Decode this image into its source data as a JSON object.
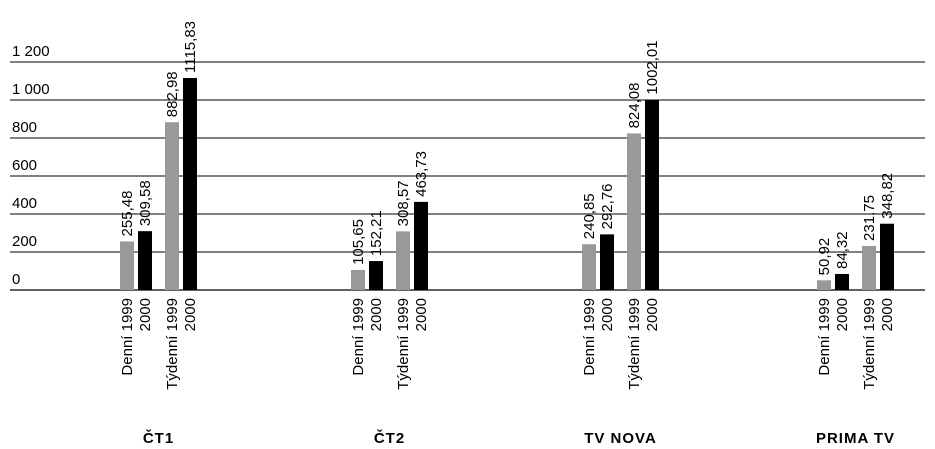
{
  "chart_data": {
    "type": "bar",
    "ylim": [
      0,
      1200
    ],
    "yticks": [
      0,
      200,
      400,
      600,
      800,
      1000,
      1200
    ],
    "ytick_labels": [
      "0",
      "200",
      "400",
      "600",
      "800",
      "1 000",
      "1 200"
    ],
    "grid": true,
    "colors": {
      "1999": "#999999",
      "2000": "#000000"
    },
    "groups": [
      {
        "name": "ČT1",
        "bars": [
          {
            "period": "Denní",
            "year": "1999",
            "value": 255.48,
            "label": "255,48"
          },
          {
            "period": "Denní",
            "year": "2000",
            "value": 309.58,
            "label": "309,58"
          },
          {
            "period": "Týdenní",
            "year": "1999",
            "value": 882.98,
            "label": "882,98"
          },
          {
            "period": "Týdenní",
            "year": "2000",
            "value": 1115.83,
            "label": "1115,83"
          }
        ]
      },
      {
        "name": "ČT2",
        "bars": [
          {
            "period": "Denní",
            "year": "1999",
            "value": 105.65,
            "label": "105,65"
          },
          {
            "period": "Denní",
            "year": "2000",
            "value": 152.21,
            "label": "152,21"
          },
          {
            "period": "Týdenní",
            "year": "1999",
            "value": 308.57,
            "label": "308,57"
          },
          {
            "period": "Týdenní",
            "year": "2000",
            "value": 463.73,
            "label": "463,73"
          }
        ]
      },
      {
        "name": "TV NOVA",
        "bars": [
          {
            "period": "Denní",
            "year": "1999",
            "value": 240.85,
            "label": "240,85"
          },
          {
            "period": "Denní",
            "year": "2000",
            "value": 292.76,
            "label": "292,76"
          },
          {
            "period": "Týdenní",
            "year": "1999",
            "value": 824.08,
            "label": "824,08"
          },
          {
            "period": "Týdenní",
            "year": "2000",
            "value": 1002.01,
            "label": "1002,01"
          }
        ]
      },
      {
        "name": "PRIMA TV",
        "bars": [
          {
            "period": "Denní",
            "year": "1999",
            "value": 50.92,
            "label": "50,92"
          },
          {
            "period": "Denní",
            "year": "2000",
            "value": 84.32,
            "label": "84,32"
          },
          {
            "period": "Týdenní",
            "year": "1999",
            "value": 231.75,
            "label": "231,75"
          },
          {
            "period": "Týdenní",
            "year": "2000",
            "value": 348.82,
            "label": "348,82"
          }
        ]
      }
    ]
  }
}
